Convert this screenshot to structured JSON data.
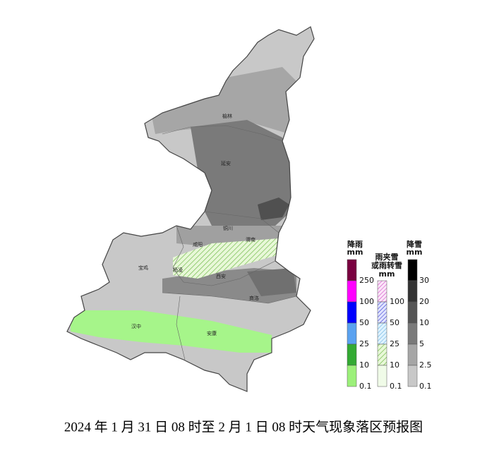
{
  "map": {
    "cities": [
      "榆林",
      "延安",
      "铜川",
      "渭南",
      "咸阳",
      "宝鸡",
      "杨凌",
      "西安",
      "商洛",
      "汉中",
      "安康"
    ],
    "legend": {
      "rain": {
        "title": "降雨",
        "unit": "mm",
        "labels": [
          250,
          100,
          50,
          25,
          10,
          0.1
        ]
      },
      "sleet": {
        "title": [
          "雨夹雪",
          "或雨转雪"
        ],
        "unit": "mm",
        "labels": [
          100,
          50,
          25,
          10,
          0.1
        ]
      },
      "snow": {
        "title": "降雪",
        "unit": "mm",
        "labels": [
          30,
          20,
          10,
          5,
          2.5,
          0.1
        ]
      }
    },
    "caption": "2024 年 1 月 31 日 08 时至 2 月 1 日 08 时天气现象落区预报图"
  }
}
